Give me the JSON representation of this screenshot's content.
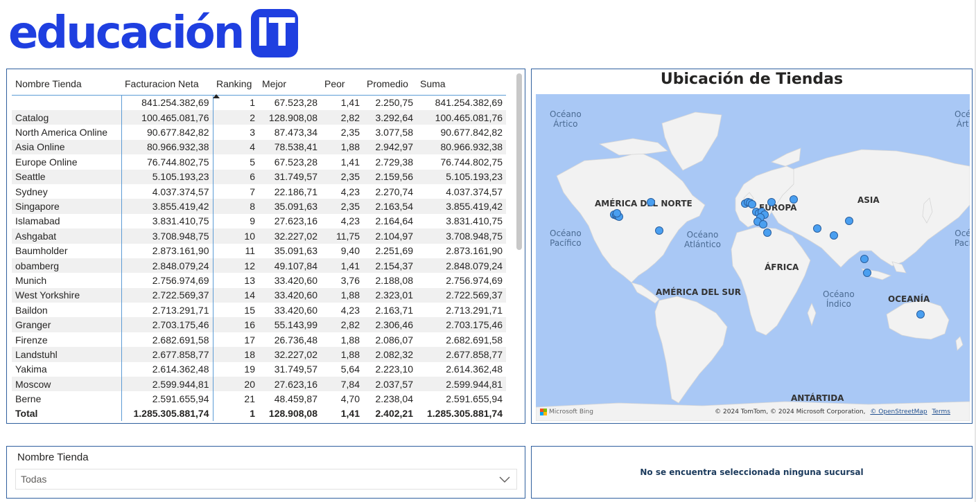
{
  "logo": {
    "text": "educación",
    "badge": "IT"
  },
  "table": {
    "headers": [
      "Nombre Tienda",
      "Facturacion Neta",
      "Ranking",
      "Mejor",
      "Peor",
      "Promedio",
      "Suma"
    ],
    "rows": [
      [
        "",
        "841.254.382,69",
        "1",
        "67.523,28",
        "1,41",
        "2.250,75",
        "841.254.382,69"
      ],
      [
        "Catalog",
        "100.465.081,76",
        "2",
        "128.908,08",
        "2,82",
        "3.292,64",
        "100.465.081,76"
      ],
      [
        "North America Online",
        "90.677.842,82",
        "3",
        "87.473,34",
        "2,35",
        "3.077,58",
        "90.677.842,82"
      ],
      [
        "Asia Online",
        "80.966.932,38",
        "4",
        "78.538,41",
        "1,88",
        "2.942,97",
        "80.966.932,38"
      ],
      [
        "Europe Online",
        "76.744.802,75",
        "5",
        "67.523,28",
        "1,41",
        "2.729,38",
        "76.744.802,75"
      ],
      [
        "Seattle",
        "5.105.193,23",
        "6",
        "31.749,57",
        "2,35",
        "2.159,56",
        "5.105.193,23"
      ],
      [
        "Sydney",
        "4.037.374,57",
        "7",
        "22.186,71",
        "4,23",
        "2.270,74",
        "4.037.374,57"
      ],
      [
        "Singapore",
        "3.855.419,42",
        "8",
        "35.091,63",
        "2,35",
        "2.163,54",
        "3.855.419,42"
      ],
      [
        "Islamabad",
        "3.831.410,75",
        "9",
        "27.623,16",
        "4,23",
        "2.164,64",
        "3.831.410,75"
      ],
      [
        "Ashgabat",
        "3.708.948,75",
        "10",
        "32.227,02",
        "11,75",
        "2.104,97",
        "3.708.948,75"
      ],
      [
        "Baumholder",
        "2.873.161,90",
        "11",
        "35.091,63",
        "9,40",
        "2.251,69",
        "2.873.161,90"
      ],
      [
        "obamberg",
        "2.848.079,24",
        "12",
        "49.107,84",
        "1,41",
        "2.154,37",
        "2.848.079,24"
      ],
      [
        "Munich",
        "2.756.974,69",
        "13",
        "33.420,60",
        "3,76",
        "2.188,08",
        "2.756.974,69"
      ],
      [
        "West Yorkshire",
        "2.722.569,37",
        "14",
        "33.420,60",
        "1,88",
        "2.323,01",
        "2.722.569,37"
      ],
      [
        "Baildon",
        "2.713.291,71",
        "15",
        "33.420,60",
        "4,23",
        "2.163,71",
        "2.713.291,71"
      ],
      [
        "Granger",
        "2.703.175,46",
        "16",
        "55.143,99",
        "2,82",
        "2.306,46",
        "2.703.175,46"
      ],
      [
        "Firenze",
        "2.682.691,58",
        "17",
        "26.736,48",
        "1,88",
        "2.086,07",
        "2.682.691,58"
      ],
      [
        "Landstuhl",
        "2.677.858,77",
        "18",
        "32.227,02",
        "1,88",
        "2.082,32",
        "2.677.858,77"
      ],
      [
        "Yakima",
        "2.614.362,48",
        "19",
        "31.749,57",
        "5,64",
        "2.223,10",
        "2.614.362,48"
      ],
      [
        "Moscow",
        "2.599.944,81",
        "20",
        "27.623,16",
        "7,84",
        "2.037,57",
        "2.599.944,81"
      ],
      [
        "Berne",
        "2.591.655,94",
        "21",
        "48.459,87",
        "4,70",
        "2.238,04",
        "2.591.655,94"
      ]
    ],
    "total": [
      "Total",
      "1.285.305.881,74",
      "1",
      "128.908,08",
      "1,41",
      "2.402,21",
      "1.285.305.881,74"
    ]
  },
  "map": {
    "title": "Ubicación de Tiendas",
    "continents": {
      "north_america": "AMÉRICA DEL NORTE",
      "europe": "EUROPA",
      "asia": "ASIA",
      "africa": "ÁFRICA",
      "south_america": "AMÉRICA DEL SUR",
      "oceania": "OCEANÍA",
      "antarctica": "ANTÁRTIDA"
    },
    "oceans": {
      "arctic_left": "Océano\nÁrtico",
      "arctic_right": "Océ\nÁrt",
      "pacific_left": "Océano\nPacífico",
      "pacific_right": "Océ\nPací",
      "atlantic": "Océano\nAtlántico",
      "indian": "Océano\nÍndico"
    },
    "bing": "Microsoft Bing",
    "copyright": "© 2024 TomTom, © 2024 Microsoft Corporation,",
    "osm_link": "© OpenStreetMap",
    "terms_link": "Terms",
    "marker_color": "#4a9ff0"
  },
  "slicer": {
    "title": "Nombre Tienda",
    "value": "Todas"
  },
  "message": "No se encuentra seleccionada ninguna sucursal"
}
